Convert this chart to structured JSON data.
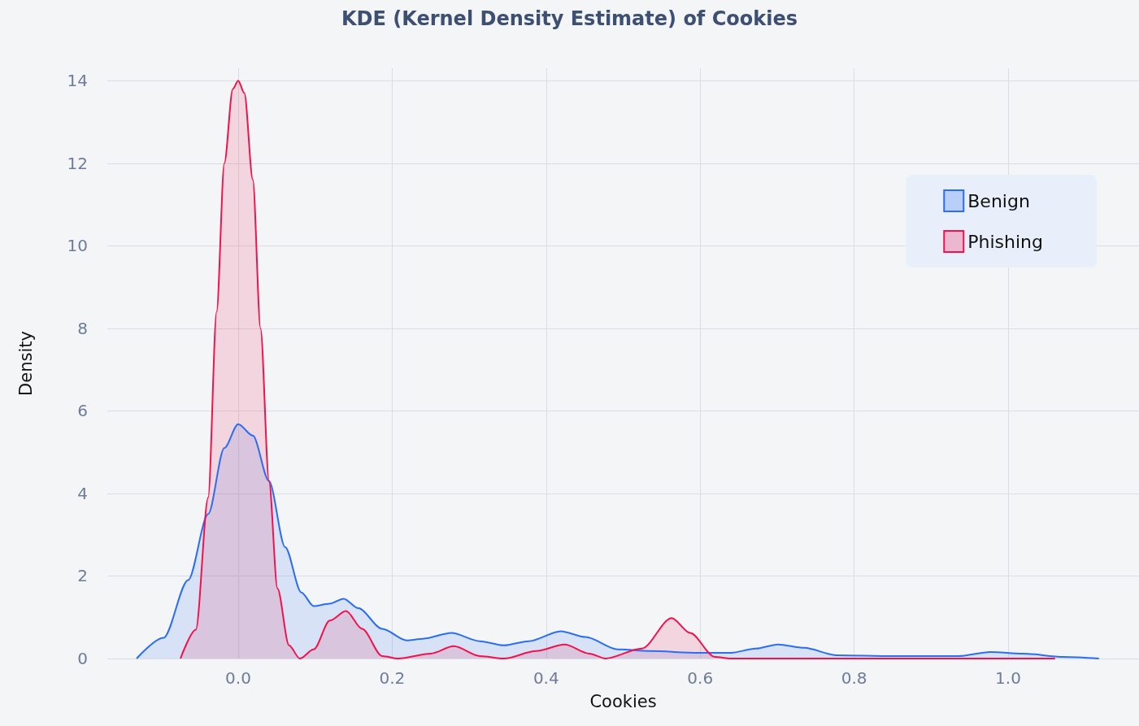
{
  "chart_data": {
    "type": "area",
    "title": "KDE (Kernel Density Estimate) of Cookies",
    "xlabel": "Cookies",
    "ylabel": "Density",
    "xlim": [
      -0.17,
      1.17
    ],
    "xticks": [
      {
        "value": 0,
        "label": "0.0"
      },
      {
        "value": 0.2,
        "label": "0.2"
      },
      {
        "value": 0.4,
        "label": "0.4"
      },
      {
        "value": 0.6,
        "label": "0.6"
      },
      {
        "value": 0.8,
        "label": "0.8"
      },
      {
        "value": 1,
        "label": "1.0"
      }
    ],
    "ylim": [
      0,
      14.3
    ],
    "yticks": [
      0,
      2,
      4,
      6,
      8,
      10,
      12,
      14
    ],
    "grid": true,
    "legend": "top right",
    "marker": "none",
    "series": [
      {
        "name": "Benign",
        "color": "#2b6ef2",
        "x": [
          -0.132,
          -0.097,
          -0.065,
          -0.039,
          -0.018,
          0,
          0.019,
          0.04,
          0.061,
          0.082,
          0.098,
          0.119,
          0.137,
          0.156,
          0.187,
          0.219,
          0.24,
          0.277,
          0.314,
          0.345,
          0.377,
          0.419,
          0.451,
          0.493,
          0.535,
          0.598,
          0.64,
          0.672,
          0.701,
          0.735,
          0.777,
          0.851,
          0.935,
          0.977,
          1.019,
          1.072,
          1.118
        ],
        "values": [
          0,
          0.5,
          1.9,
          3.5,
          5.1,
          5.68,
          5.4,
          4.3,
          2.7,
          1.6,
          1.27,
          1.33,
          1.45,
          1.22,
          0.72,
          0.44,
          0.48,
          0.62,
          0.42,
          0.32,
          0.42,
          0.66,
          0.52,
          0.22,
          0.18,
          0.14,
          0.14,
          0.24,
          0.34,
          0.26,
          0.08,
          0.06,
          0.06,
          0.16,
          0.12,
          0.04,
          0
        ]
      },
      {
        "name": "Phishing",
        "color": "#f2124b",
        "x": [
          -0.075,
          -0.055,
          -0.039,
          -0.028,
          -0.018,
          -0.007,
          0,
          0.008,
          0.019,
          0.029,
          0.04,
          0.051,
          0.066,
          0.08,
          0.098,
          0.119,
          0.14,
          0.161,
          0.187,
          0.208,
          0.25,
          0.28,
          0.314,
          0.345,
          0.387,
          0.424,
          0.456,
          0.477,
          0.524,
          0.563,
          0.587,
          0.619,
          0.64,
          1.061
        ],
        "values": [
          0,
          0.7,
          3.9,
          8.4,
          12,
          13.8,
          14,
          13.7,
          11.6,
          8,
          4.3,
          1.7,
          0.32,
          0,
          0.22,
          0.92,
          1.15,
          0.72,
          0.06,
          0,
          0.12,
          0.3,
          0.06,
          0,
          0.18,
          0.34,
          0.12,
          0,
          0.24,
          0.98,
          0.62,
          0.04,
          0,
          0
        ]
      }
    ]
  }
}
